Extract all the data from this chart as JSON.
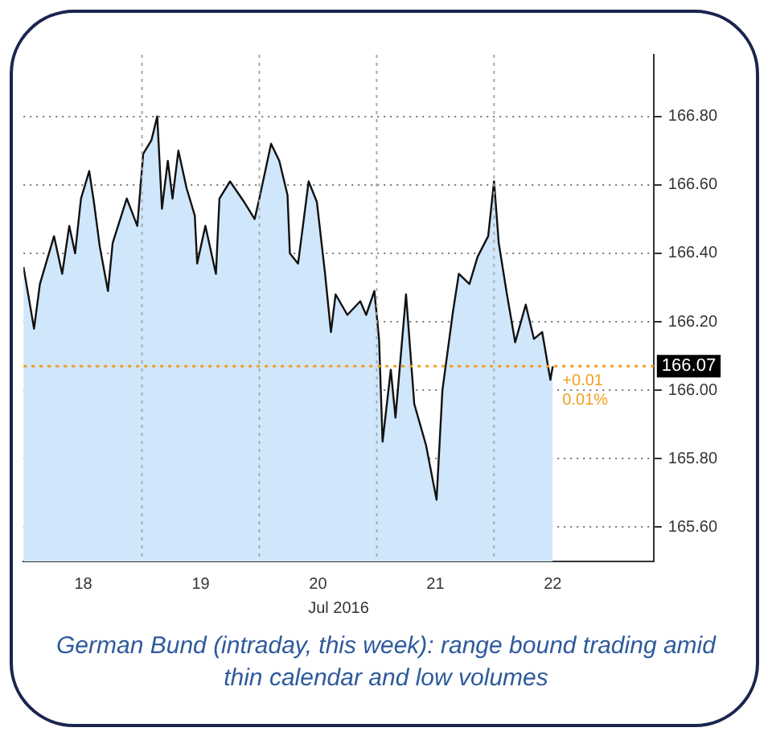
{
  "chart_data": {
    "type": "area",
    "xlabel": "Jul 2016",
    "annotations": [
      "+0.01",
      "0.01%",
      "German Bund (intraday, this week): range bound trading amid thin calendar and low volumes"
    ],
    "x": [
      17.49,
      17.58,
      17.63,
      17.75,
      17.82,
      17.88,
      17.93,
      17.98,
      18.05,
      18.09,
      18.14,
      18.21,
      18.25,
      18.37,
      18.46,
      18.51,
      18.58,
      18.63,
      18.67,
      18.72,
      18.76,
      18.81,
      18.88,
      18.95,
      18.97,
      19.04,
      19.13,
      19.16,
      19.25,
      19.37,
      19.46,
      19.5,
      19.6,
      19.67,
      19.74,
      19.76,
      19.83,
      19.92,
      19.99,
      20.06,
      20.11,
      20.15,
      20.25,
      20.36,
      20.41,
      20.48,
      20.52,
      20.55,
      20.62,
      20.66,
      20.75,
      20.82,
      20.92,
      21.01,
      21.06,
      21.15,
      21.2,
      21.29,
      21.36,
      21.45,
      21.5,
      21.54,
      21.61,
      21.68,
      21.77,
      21.84,
      21.91,
      21.98,
      22.0
    ],
    "series": [
      {
        "color": "#111111",
        "values": [
          166.36,
          166.18,
          166.31,
          166.45,
          166.34,
          166.48,
          166.4,
          166.56,
          166.64,
          166.55,
          166.42,
          166.29,
          166.43,
          166.56,
          166.48,
          166.69,
          166.73,
          166.8,
          166.53,
          166.67,
          166.56,
          166.7,
          166.59,
          166.51,
          166.37,
          166.48,
          166.34,
          166.56,
          166.61,
          166.55,
          166.5,
          166.56,
          166.72,
          166.67,
          166.57,
          166.4,
          166.37,
          166.61,
          166.55,
          166.34,
          166.17,
          166.28,
          166.22,
          166.26,
          166.22,
          166.29,
          166.15,
          165.85,
          166.06,
          165.92,
          166.28,
          165.96,
          165.84,
          165.68,
          166.0,
          166.23,
          166.34,
          166.31,
          166.39,
          166.45,
          166.61,
          166.43,
          166.28,
          166.14,
          166.25,
          166.15,
          166.17,
          166.03,
          166.07
        ]
      }
    ],
    "xlim": [
      17.49,
      22.86
    ],
    "xticks": [
      18,
      19,
      20,
      21,
      22
    ],
    "ylim": [
      165.5,
      166.98
    ],
    "yticks": [
      {
        "value": 165.6,
        "label": "165.60"
      },
      {
        "value": 165.8,
        "label": "165.80"
      },
      {
        "value": 166.0,
        "label": "166.00"
      },
      {
        "value": 166.2,
        "label": "166.20"
      },
      {
        "value": 166.4,
        "label": "166.40"
      },
      {
        "value": 166.6,
        "label": "166.60"
      },
      {
        "value": 166.8,
        "label": "166.80"
      }
    ],
    "grid": "y",
    "legend": false,
    "marker": "none",
    "line_style": "solid",
    "ref_lines": [
      {
        "axis": "x",
        "value": 18.5,
        "color": "#aaaaaa",
        "line_style": "dotted"
      },
      {
        "axis": "x",
        "value": 19.5,
        "color": "#aaaaaa",
        "line_style": "dotted"
      },
      {
        "axis": "x",
        "value": 20.5,
        "color": "#aaaaaa",
        "line_style": "dotted"
      },
      {
        "axis": "x",
        "value": 21.5,
        "color": "#aaaaaa",
        "line_style": "dotted"
      },
      {
        "axis": "y",
        "value": 166.07,
        "label": "166.07",
        "color": "#f0a020",
        "line_style": "dotted"
      }
    ]
  }
}
